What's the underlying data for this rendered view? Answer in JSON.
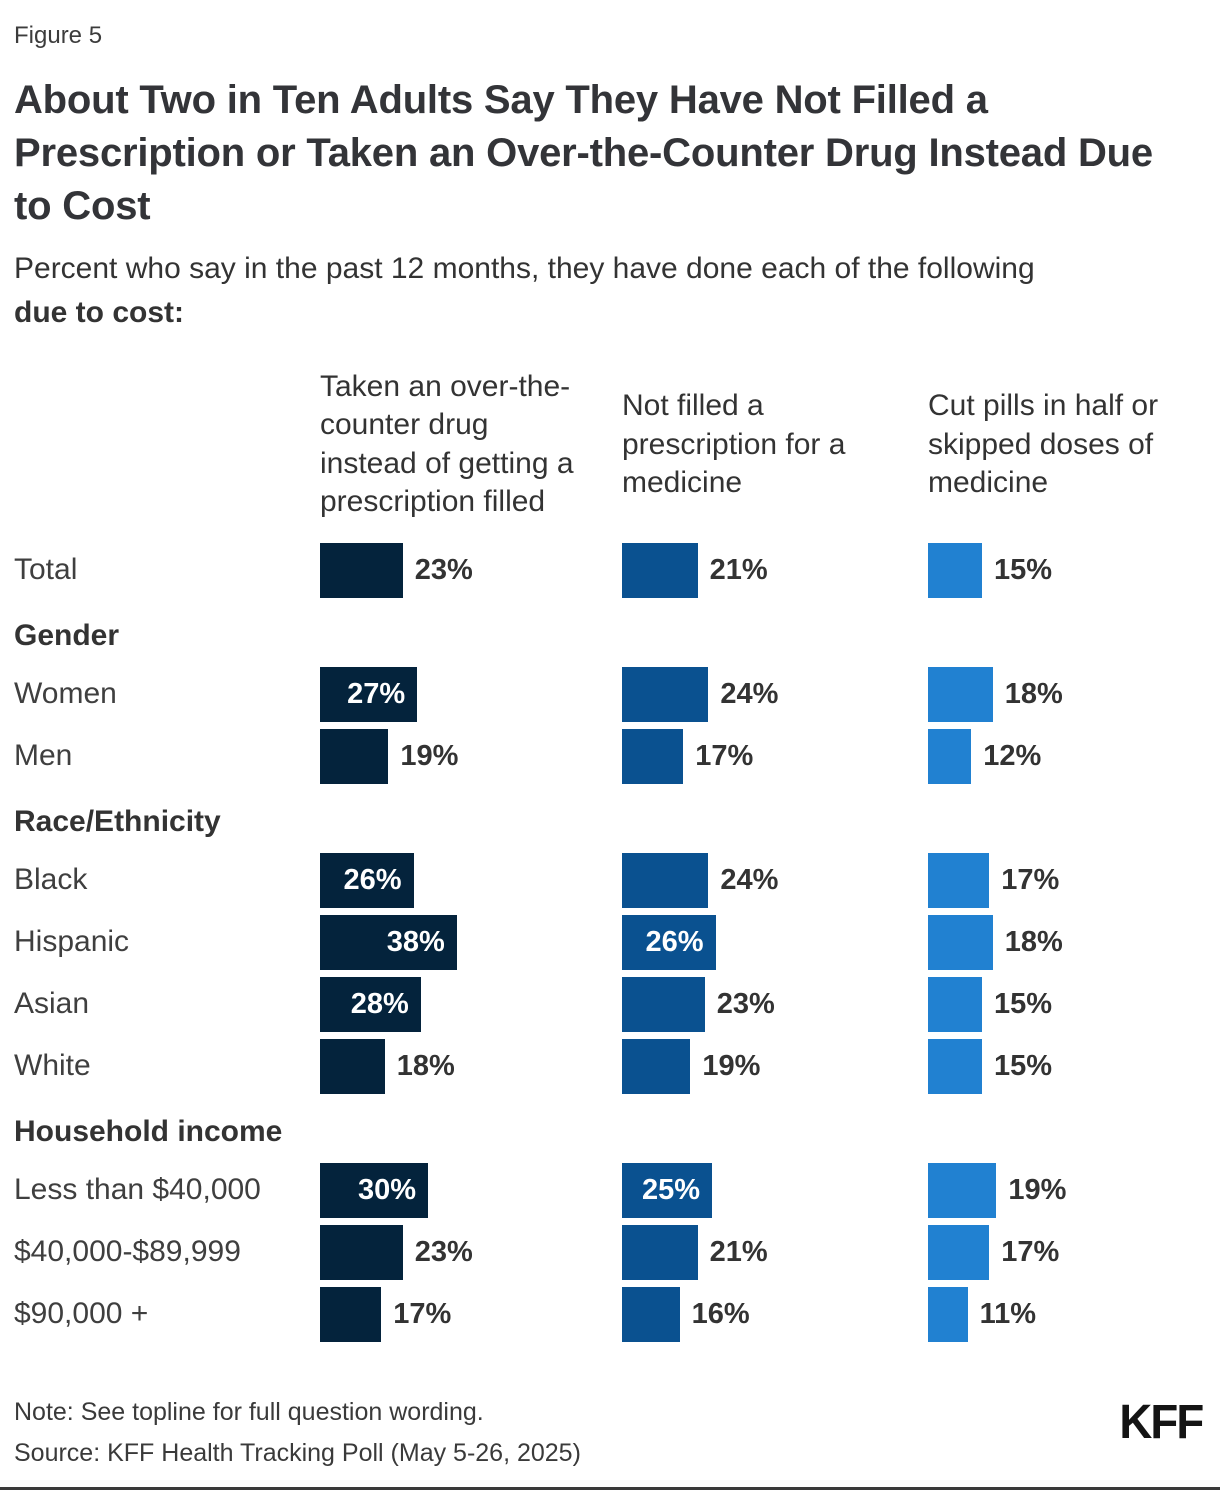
{
  "figure_label": "Figure 5",
  "title": "About Two in Ten Adults Say They Have Not Filled a\nPrescription or Taken an Over-the-Counter Drug Instead Due\nto Cost",
  "subtitle": {
    "line1": "Percent who say in the past 12 months, they have done each of the following",
    "line2_bold": "due to cost:"
  },
  "columns_display": [
    "Taken an over-the-\ncounter drug\ninstead of getting a\nprescription filled",
    "Not filled a\nprescription for a\nmedicine",
    "Cut pills in half or\nskipped doses of\nmedicine"
  ],
  "chart_data": {
    "type": "bar",
    "orientation": "horizontal",
    "value_unit": "percent",
    "label_inside_threshold": 25,
    "categories": [
      "Total",
      "Women",
      "Men",
      "Black",
      "Hispanic",
      "Asian",
      "White",
      "Less than $40,000",
      "$40,000-$89,999",
      "$90,000 +"
    ],
    "category_groups": [
      {
        "label": "Gender",
        "before": "Women"
      },
      {
        "label": "Race/Ethnicity",
        "before": "Black"
      },
      {
        "label": "Household income",
        "before": "Less than $40,000"
      }
    ],
    "series": [
      {
        "name": "Taken an over-the-counter drug instead of getting a prescription filled",
        "color": "#04233C",
        "values": [
          23,
          27,
          19,
          26,
          38,
          28,
          18,
          30,
          23,
          17
        ]
      },
      {
        "name": "Not filled a prescription for a medicine",
        "color": "#0A5190",
        "values": [
          21,
          24,
          17,
          24,
          26,
          23,
          19,
          25,
          21,
          16
        ]
      },
      {
        "name": "Cut pills in half or skipped doses of medicine",
        "color": "#2181D1",
        "values": [
          15,
          18,
          12,
          17,
          18,
          15,
          15,
          19,
          17,
          11
        ]
      }
    ]
  },
  "note": "Note: See topline for full question wording.",
  "source": "Source: KFF Health Tracking Poll (May 5-26, 2025)",
  "logo": "KFF"
}
